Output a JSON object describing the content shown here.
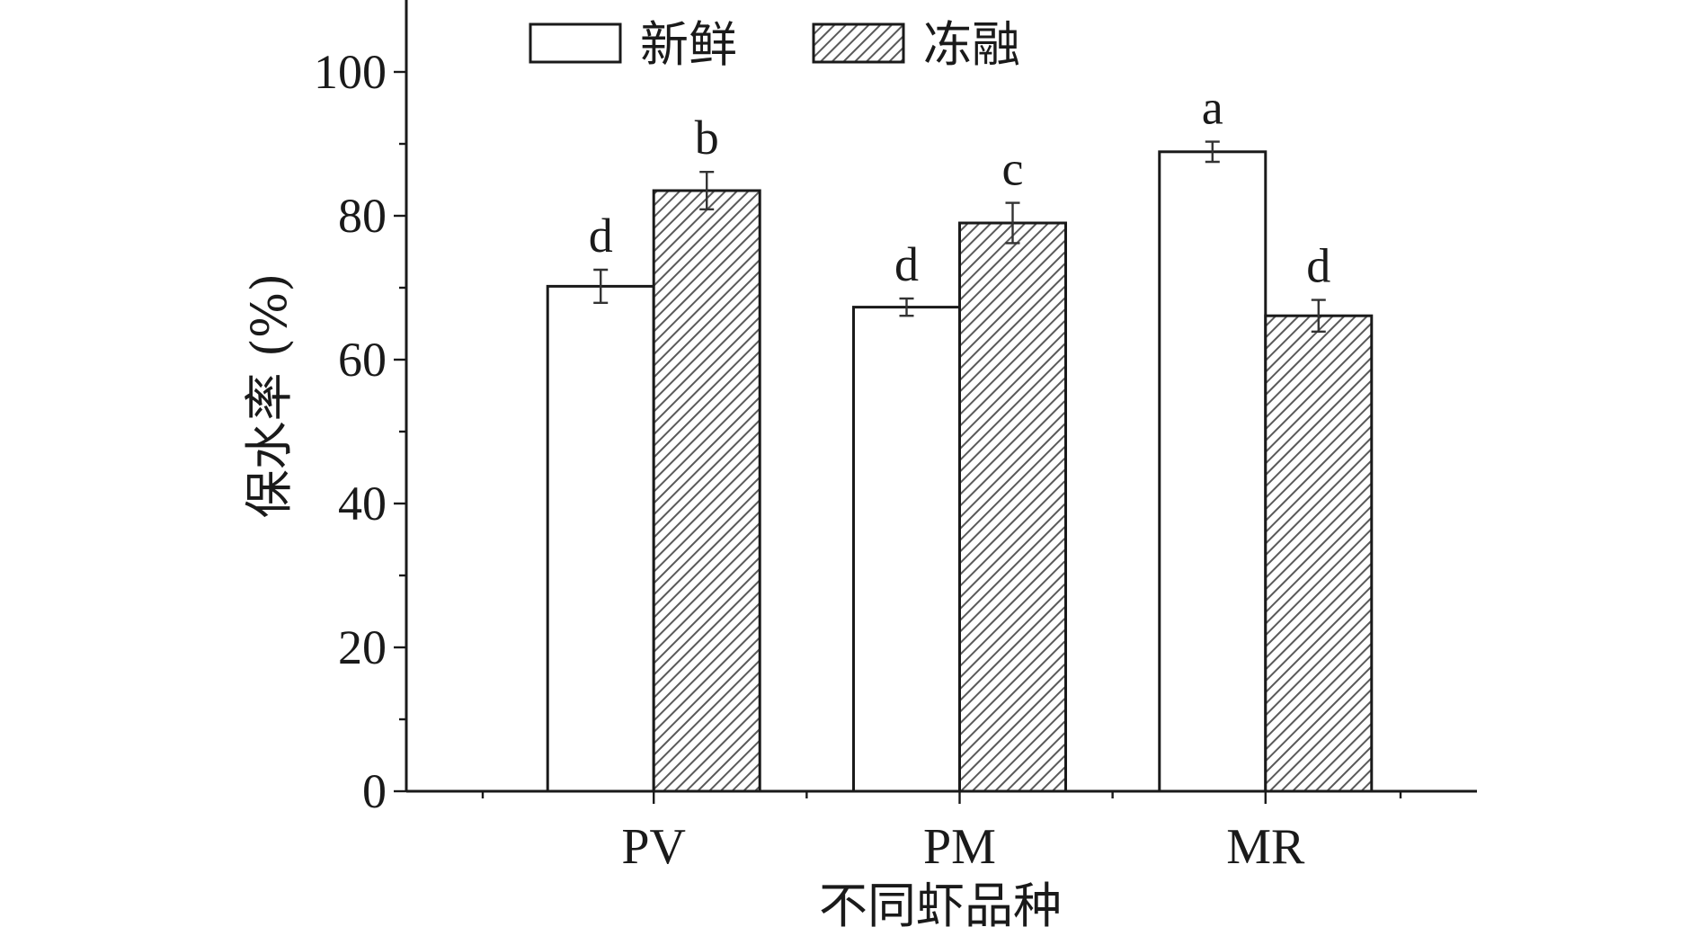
{
  "chart_data": {
    "type": "bar",
    "title": "",
    "xlabel": "不同虾品种",
    "ylabel": "保水率 (%)",
    "ylim": [
      0,
      110
    ],
    "yticks": [
      0,
      20,
      40,
      60,
      80,
      100
    ],
    "categories": [
      "PV",
      "PM",
      "MR"
    ],
    "series": [
      {
        "name": "新鲜",
        "fill": "#ffffff",
        "pattern": "none",
        "values": [
          70.2,
          67.3,
          88.9
        ],
        "errors": [
          2.3,
          1.2,
          1.4
        ],
        "labels": [
          "d",
          "d",
          "a"
        ]
      },
      {
        "name": "冻融",
        "fill": "#ffffff",
        "pattern": "diagonal-hatch",
        "values": [
          83.5,
          79.0,
          66.1
        ],
        "errors": [
          2.6,
          2.8,
          2.2
        ],
        "labels": [
          "b",
          "c",
          "d"
        ]
      }
    ],
    "legend": "top-center",
    "grid": false,
    "colors": {
      "axis": "#1a1a1a",
      "bar_stroke": "#1a1a1a",
      "hatch": "#555555"
    }
  }
}
